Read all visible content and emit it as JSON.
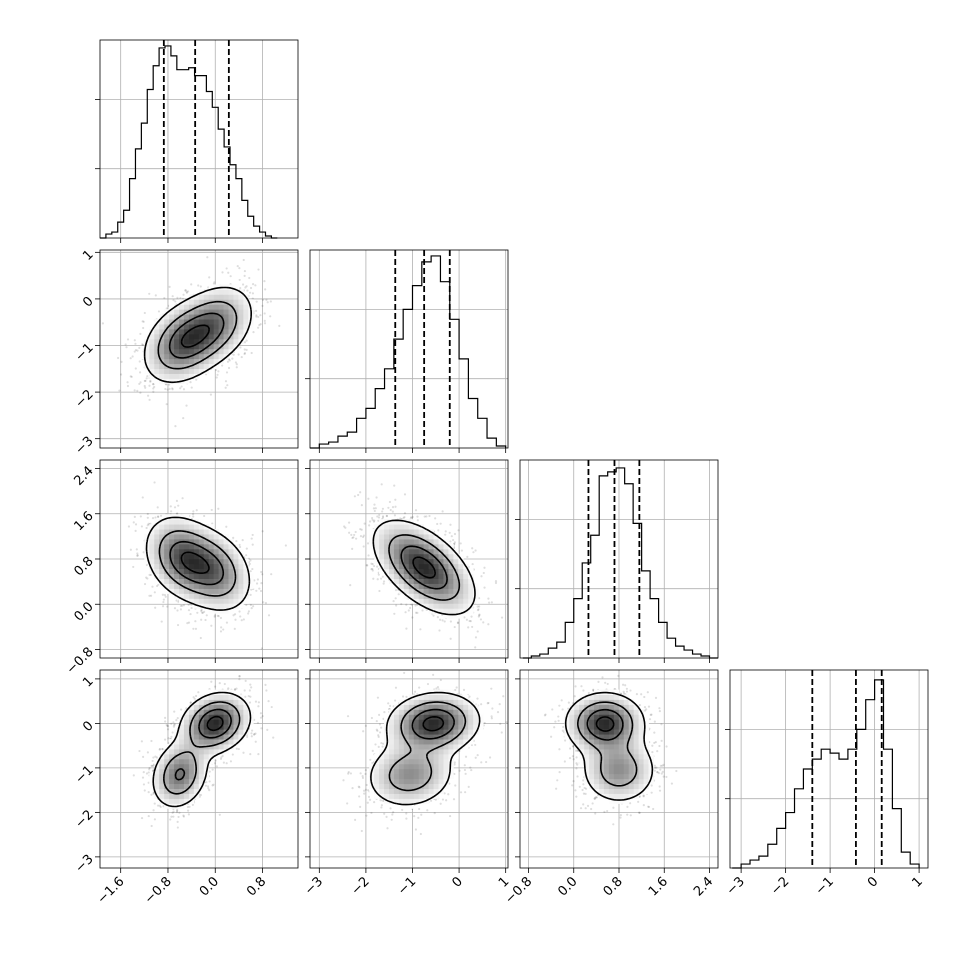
{
  "chart_data": {
    "type": "corner",
    "title": "",
    "grid": true,
    "axes": [
      {
        "ticks": [
          -1.6,
          -0.8,
          0.0,
          0.8
        ],
        "tick_labels": [
          "−1.6",
          "−0.8",
          "0.0",
          "0.8"
        ],
        "range": [
          -1.95,
          1.4
        ]
      },
      {
        "ticks": [
          -3,
          -2,
          -1,
          0,
          1
        ],
        "tick_labels": [
          "−3",
          "−2",
          "−1",
          "0",
          "1"
        ],
        "range": [
          -3.2,
          1.05
        ]
      },
      {
        "ticks": [
          -0.8,
          0.0,
          0.8,
          1.6,
          2.4
        ],
        "tick_labels": [
          "−0.8",
          "0.0",
          "0.8",
          "1.6",
          "2.4"
        ],
        "range": [
          -0.95,
          2.55
        ]
      },
      {
        "ticks": [
          -3,
          -2,
          -1,
          0,
          1
        ],
        "tick_labels": [
          "−3",
          "−2",
          "−1",
          "0",
          "1"
        ],
        "range": [
          -3.25,
          1.2
        ]
      }
    ],
    "histograms": [
      {
        "axis": 0,
        "quantiles": [
          -0.87,
          -0.34,
          0.23
        ],
        "bin_edges": [
          -1.95,
          -1.85,
          -1.75,
          -1.65,
          -1.55,
          -1.45,
          -1.35,
          -1.25,
          -1.15,
          -1.05,
          -0.95,
          -0.85,
          -0.75,
          -0.65,
          -0.55,
          -0.45,
          -0.35,
          -0.25,
          -0.15,
          -0.05,
          0.05,
          0.15,
          0.25,
          0.35,
          0.45,
          0.55,
          0.65,
          0.75,
          0.85,
          0.95,
          1.05
        ],
        "counts": [
          0.0,
          0.02,
          0.03,
          0.08,
          0.14,
          0.3,
          0.45,
          0.58,
          0.75,
          0.87,
          0.96,
          0.97,
          0.92,
          0.85,
          0.85,
          0.86,
          0.82,
          0.82,
          0.74,
          0.66,
          0.55,
          0.46,
          0.37,
          0.3,
          0.19,
          0.11,
          0.06,
          0.03,
          0.01,
          0.0
        ]
      },
      {
        "axis": 1,
        "quantiles": [
          -1.37,
          -0.75,
          -0.2
        ],
        "bin_edges": [
          -3.2,
          -3.0,
          -2.8,
          -2.6,
          -2.4,
          -2.2,
          -2.0,
          -1.8,
          -1.6,
          -1.4,
          -1.2,
          -1.0,
          -0.8,
          -0.6,
          -0.4,
          -0.2,
          0.0,
          0.2,
          0.4,
          0.6,
          0.8,
          1.0
        ],
        "counts": [
          0.0,
          0.02,
          0.03,
          0.06,
          0.08,
          0.15,
          0.2,
          0.3,
          0.4,
          0.55,
          0.7,
          0.82,
          0.94,
          0.97,
          0.84,
          0.65,
          0.45,
          0.25,
          0.15,
          0.05,
          0.01
        ]
      },
      {
        "axis": 2,
        "quantiles": [
          0.26,
          0.72,
          1.16
        ],
        "bin_edges": [
          -0.9,
          -0.75,
          -0.6,
          -0.45,
          -0.3,
          -0.15,
          0.0,
          0.15,
          0.3,
          0.45,
          0.6,
          0.75,
          0.9,
          1.05,
          1.2,
          1.35,
          1.5,
          1.65,
          1.8,
          1.95,
          2.1,
          2.25,
          2.4,
          2.55
        ],
        "counts": [
          0.0,
          0.01,
          0.02,
          0.05,
          0.08,
          0.18,
          0.3,
          0.48,
          0.62,
          0.92,
          0.94,
          0.96,
          0.88,
          0.68,
          0.44,
          0.3,
          0.18,
          0.1,
          0.06,
          0.04,
          0.02,
          0.01,
          0.0
        ]
      },
      {
        "axis": 3,
        "quantiles": [
          -1.4,
          -0.42,
          0.16
        ],
        "bin_edges": [
          -3.2,
          -3.0,
          -2.8,
          -2.6,
          -2.4,
          -2.2,
          -2.0,
          -1.8,
          -1.6,
          -1.4,
          -1.2,
          -1.0,
          -0.8,
          -0.6,
          -0.4,
          -0.2,
          0.0,
          0.2,
          0.4,
          0.6,
          0.8,
          1.0
        ],
        "counts": [
          0.0,
          0.02,
          0.04,
          0.06,
          0.12,
          0.2,
          0.28,
          0.4,
          0.5,
          0.55,
          0.6,
          0.58,
          0.55,
          0.6,
          0.7,
          0.85,
          0.95,
          0.6,
          0.3,
          0.08,
          0.02
        ]
      }
    ],
    "joint_panels": [
      {
        "x_axis": 0,
        "y_axis": 1,
        "components": [
          {
            "mx": -0.55,
            "my": -0.95,
            "sx": 0.35,
            "sy": 0.45,
            "rho": 0.3,
            "w": 0.55
          },
          {
            "mx": 0.0,
            "my": -0.55,
            "sx": 0.35,
            "sy": 0.45,
            "rho": 0.3,
            "w": 0.45
          }
        ]
      },
      {
        "x_axis": 0,
        "y_axis": 2,
        "components": [
          {
            "mx": -0.55,
            "my": 0.82,
            "sx": 0.33,
            "sy": 0.38,
            "rho": -0.25,
            "w": 0.55
          },
          {
            "mx": 0.0,
            "my": 0.58,
            "sx": 0.33,
            "sy": 0.38,
            "rho": -0.25,
            "w": 0.45
          }
        ]
      },
      {
        "x_axis": 1,
        "y_axis": 2,
        "components": [
          {
            "mx": -0.75,
            "my": 0.65,
            "sx": 0.55,
            "sy": 0.42,
            "rho": -0.55,
            "w": 1.0
          }
        ]
      },
      {
        "x_axis": 0,
        "y_axis": 3,
        "components": [
          {
            "mx": 0.0,
            "my": 0.0,
            "sx": 0.3,
            "sy": 0.35,
            "rho": 0.2,
            "w": 0.6
          },
          {
            "mx": -0.6,
            "my": -1.15,
            "sx": 0.25,
            "sy": 0.4,
            "rho": 0.2,
            "w": 0.4
          }
        ]
      },
      {
        "x_axis": 1,
        "y_axis": 3,
        "components": [
          {
            "mx": -0.55,
            "my": 0.0,
            "sx": 0.5,
            "sy": 0.35,
            "rho": 0.1,
            "w": 0.6
          },
          {
            "mx": -1.05,
            "my": -1.15,
            "sx": 0.5,
            "sy": 0.4,
            "rho": 0.1,
            "w": 0.4
          }
        ]
      },
      {
        "x_axis": 2,
        "y_axis": 3,
        "components": [
          {
            "mx": 0.55,
            "my": 0.0,
            "sx": 0.35,
            "sy": 0.35,
            "rho": 0.0,
            "w": 0.6
          },
          {
            "mx": 0.8,
            "my": -1.05,
            "sx": 0.35,
            "sy": 0.4,
            "rho": 0.0,
            "w": 0.4
          }
        ]
      }
    ]
  }
}
